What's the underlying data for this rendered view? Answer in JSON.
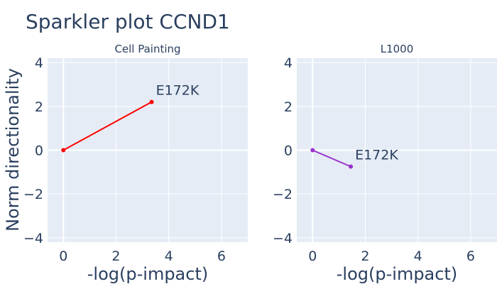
{
  "chart_data": {
    "type": "scatter",
    "title": "Sparkler plot CCND1",
    "ylabel": "Norm directionality",
    "panels": [
      {
        "subtitle": "Cell Painting",
        "xlabel": "-log(p-impact)",
        "xlim": [
          -0.6,
          7.0
        ],
        "ylim": [
          -4.2,
          4.2
        ],
        "x_ticks": [
          0,
          2,
          4,
          6
        ],
        "y_ticks": [
          -4,
          -2,
          0,
          2,
          4
        ],
        "x_tick_labels": [
          "0",
          "2",
          "4",
          "6"
        ],
        "y_tick_labels": [
          "−4",
          "−2",
          "0",
          "2",
          "4"
        ],
        "color": "#ff0000",
        "series": [
          {
            "x": [
              0,
              3.35
            ],
            "y": [
              0,
              2.2
            ]
          }
        ],
        "annotation": {
          "text": "E172K",
          "x": 3.35,
          "y": 2.2
        }
      },
      {
        "subtitle": "L1000",
        "xlabel": "-log(p-impact)",
        "xlim": [
          -0.6,
          7.0
        ],
        "ylim": [
          -4.2,
          4.2
        ],
        "x_ticks": [
          0,
          2,
          4,
          6
        ],
        "y_ticks": [
          -4,
          -2,
          0,
          2,
          4
        ],
        "x_tick_labels": [
          "0",
          "2",
          "4",
          "6"
        ],
        "y_tick_labels": [
          "−4",
          "−2",
          "0",
          "2",
          "4"
        ],
        "color": "#9932cc",
        "series": [
          {
            "x": [
              0,
              1.45
            ],
            "y": [
              0,
              -0.75
            ]
          }
        ],
        "annotation": {
          "text": "E172K",
          "x": 1.45,
          "y": -0.75
        }
      }
    ]
  }
}
